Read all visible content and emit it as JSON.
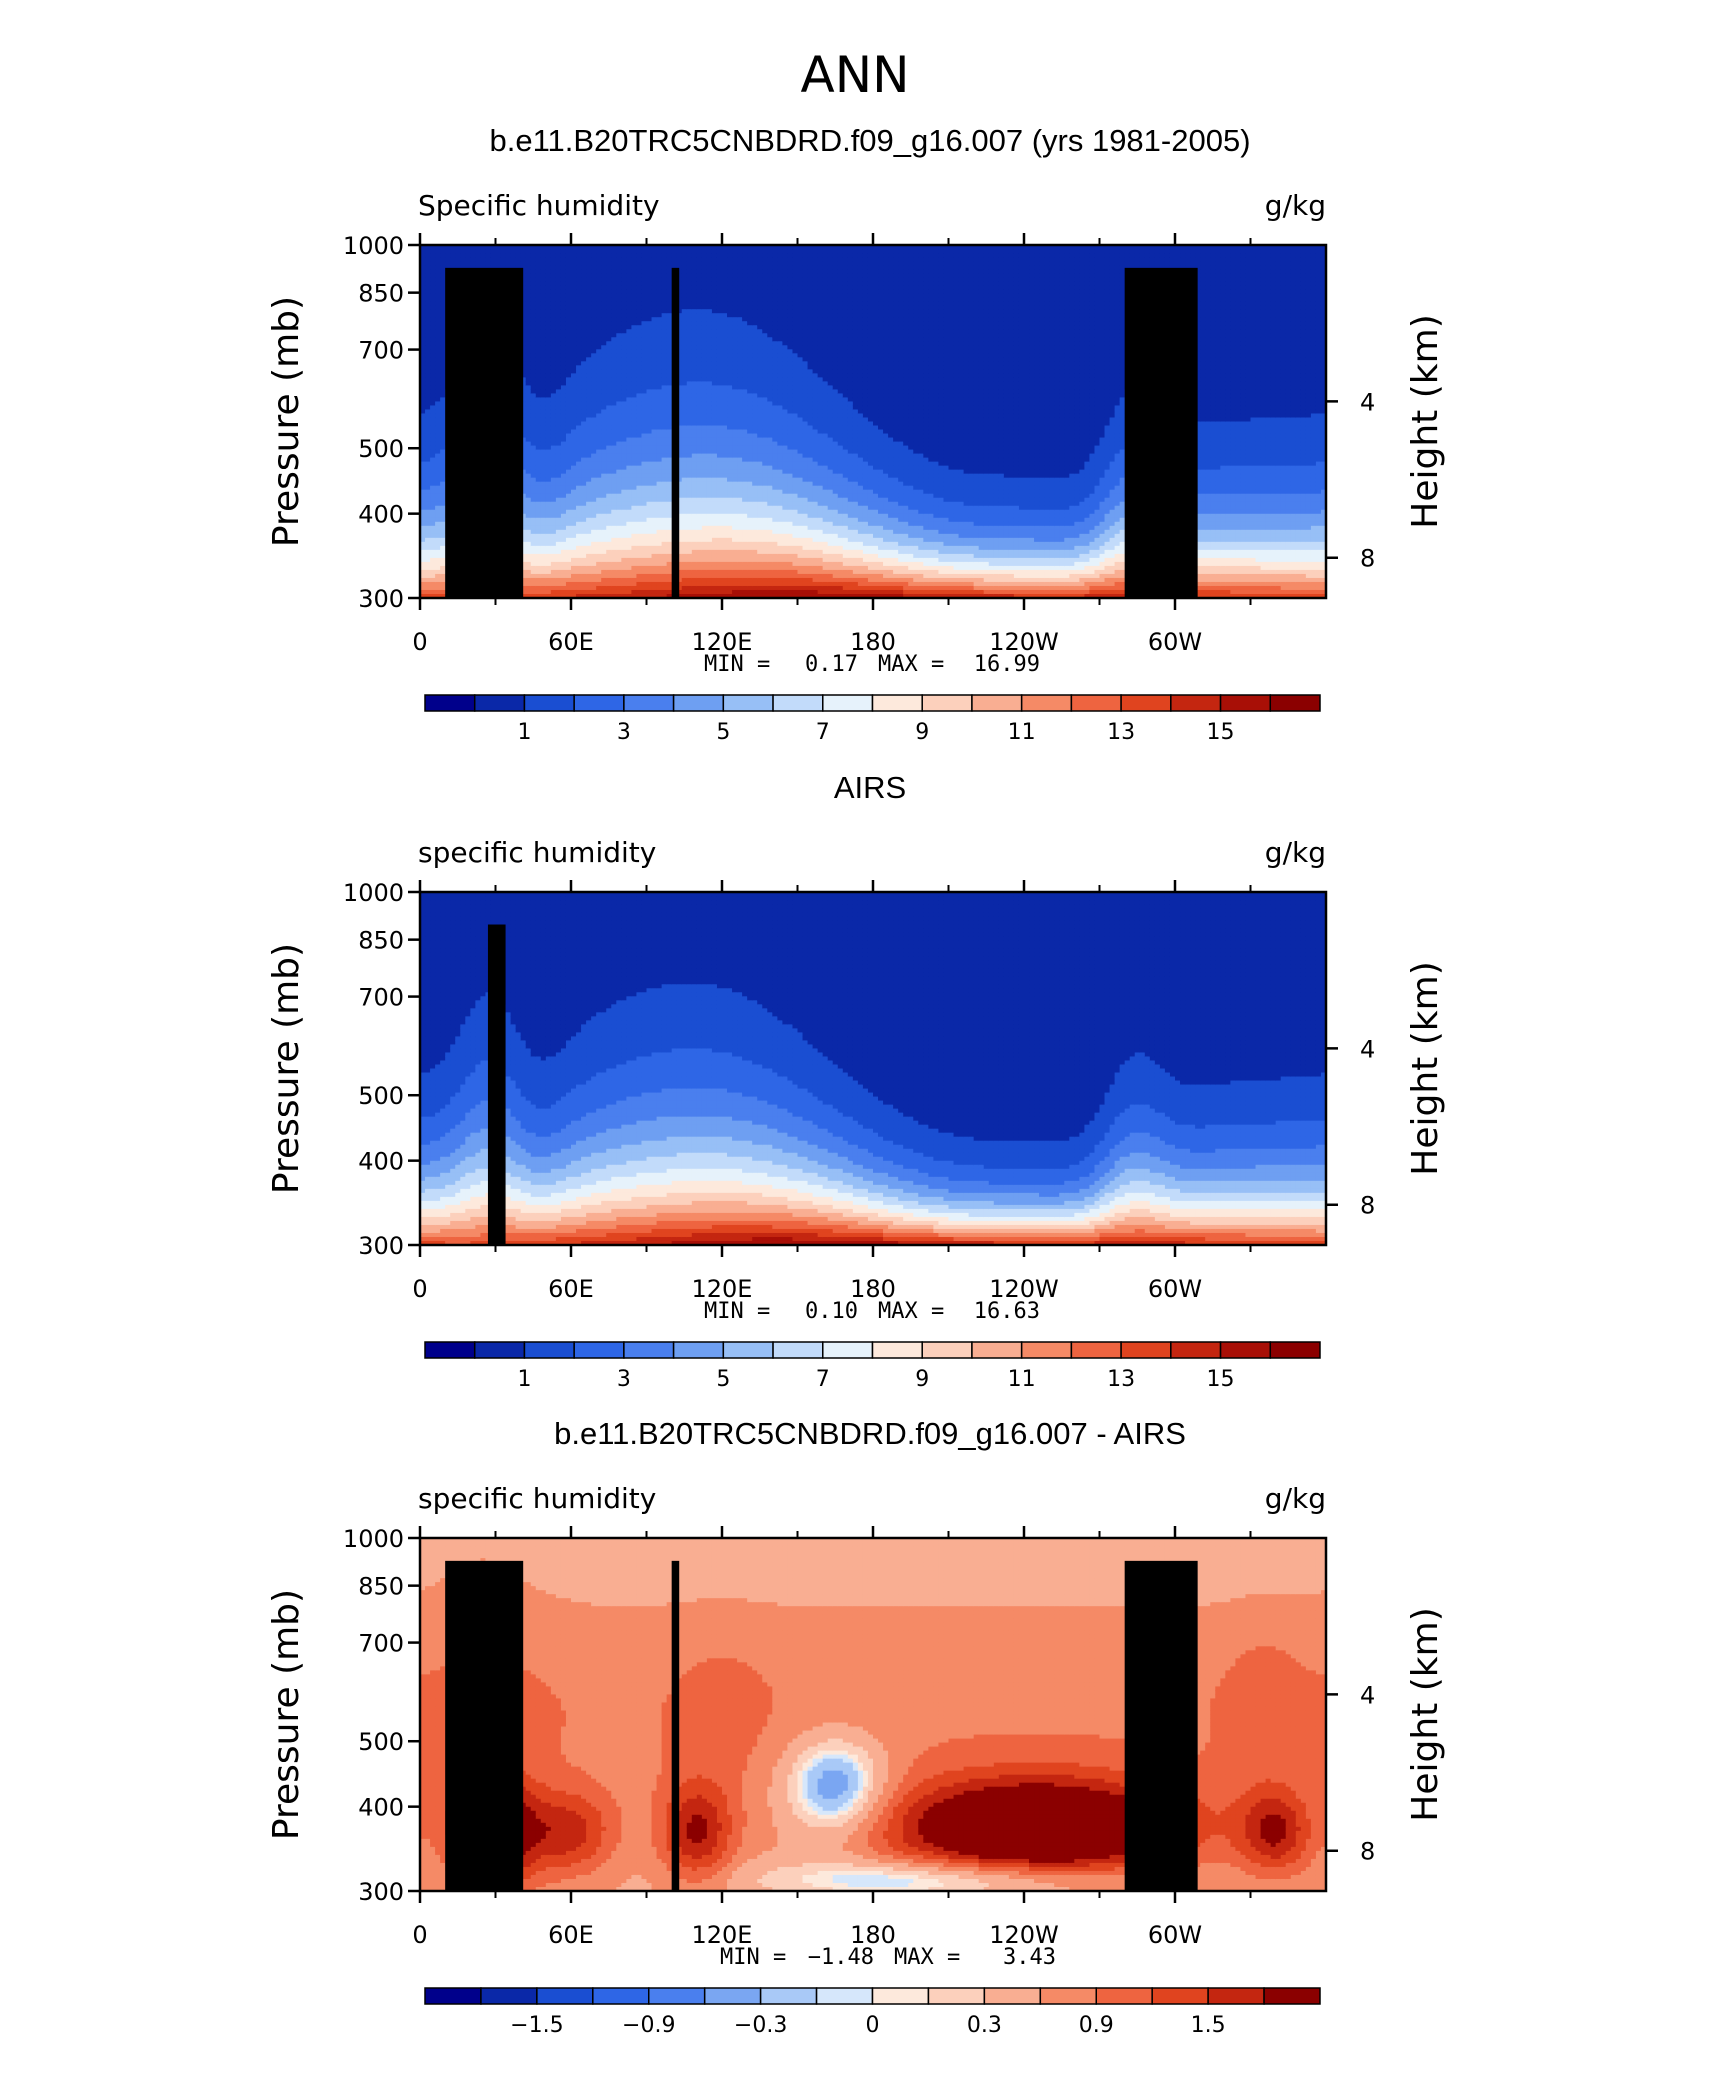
{
  "figure": {
    "suptitle": "ANN"
  },
  "colors": {
    "seq": [
      "#00008b",
      "#0a28a8",
      "#1a4ed2",
      "#2e66e6",
      "#4a7fee",
      "#6e9ff2",
      "#97bff6",
      "#c2dbfa",
      "#e6f2fb",
      "#fde9dc",
      "#fcd0bc",
      "#f9ae92",
      "#f58a66",
      "#ee6440",
      "#e0441f",
      "#c42610",
      "#a80f06",
      "#8b0000"
    ],
    "diff": [
      "#00008b",
      "#0a28a8",
      "#1a4ed2",
      "#2e66e6",
      "#4a7fee",
      "#7aa6f2",
      "#a9c9f7",
      "#d6e7fb",
      "#fde9dc",
      "#fcd0bc",
      "#f9ae92",
      "#f58a66",
      "#ee6440",
      "#e0441f",
      "#c42610",
      "#8b0000"
    ]
  },
  "chart_data": [
    {
      "type": "heatmap",
      "title": "b.e11.B20TRC5CNBDRD.f09_g16.007 (yrs 1981-2005)",
      "left_label": "Specific humidity",
      "right_label": "g/kg",
      "ylabel": "Pressure (mb)",
      "ylabel_right": "Height (km)",
      "x_ticks": [
        "0",
        "60E",
        "120E",
        "180",
        "120W",
        "60W"
      ],
      "x_tick_values": [
        0,
        60,
        120,
        180,
        240,
        300
      ],
      "xlim": [
        0,
        360
      ],
      "y_ticks": [
        "300",
        "400",
        "500",
        "700",
        "850",
        "1000"
      ],
      "y_tick_values": [
        300,
        400,
        500,
        700,
        850,
        1000
      ],
      "ylim": [
        1000,
        300
      ],
      "right_ticks": [
        "8",
        "4"
      ],
      "right_tick_values": [
        8,
        4
      ],
      "min_label": "MIN =",
      "min_value": "0.17",
      "max_label": "MAX =",
      "max_value": "16.99",
      "colorbar_labels": [
        "1",
        "3",
        "5",
        "7",
        "9",
        "11",
        "13",
        "15"
      ],
      "colorbar_label_levels": [
        1,
        3,
        5,
        7,
        9,
        11,
        13,
        15
      ],
      "levels": [
        0,
        1,
        2,
        3,
        4,
        5,
        6,
        7,
        8,
        9,
        10,
        11,
        12,
        13,
        14,
        15,
        16
      ],
      "palette": "seq"
    },
    {
      "type": "heatmap",
      "title": "AIRS",
      "left_label": "specific humidity",
      "right_label": "g/kg",
      "ylabel": "Pressure (mb)",
      "ylabel_right": "Height (km)",
      "x_ticks": [
        "0",
        "60E",
        "120E",
        "180",
        "120W",
        "60W"
      ],
      "x_tick_values": [
        0,
        60,
        120,
        180,
        240,
        300
      ],
      "xlim": [
        0,
        360
      ],
      "y_ticks": [
        "300",
        "400",
        "500",
        "700",
        "850",
        "1000"
      ],
      "y_tick_values": [
        300,
        400,
        500,
        700,
        850,
        1000
      ],
      "ylim": [
        1000,
        300
      ],
      "right_ticks": [
        "8",
        "4"
      ],
      "right_tick_values": [
        8,
        4
      ],
      "min_label": "MIN =",
      "min_value": "0.10",
      "max_label": "MAX =",
      "max_value": "16.63",
      "colorbar_labels": [
        "1",
        "3",
        "5",
        "7",
        "9",
        "11",
        "13",
        "15"
      ],
      "colorbar_label_levels": [
        1,
        3,
        5,
        7,
        9,
        11,
        13,
        15
      ],
      "levels": [
        0,
        1,
        2,
        3,
        4,
        5,
        6,
        7,
        8,
        9,
        10,
        11,
        12,
        13,
        14,
        15,
        16
      ],
      "palette": "seq"
    },
    {
      "type": "heatmap",
      "title": "b.e11.B20TRC5CNBDRD.f09_g16.007 - AIRS",
      "left_label": "specific humidity",
      "right_label": "g/kg",
      "ylabel": "Pressure (mb)",
      "ylabel_right": "Height (km)",
      "x_ticks": [
        "0",
        "60E",
        "120E",
        "180",
        "120W",
        "60W"
      ],
      "x_tick_values": [
        0,
        60,
        120,
        180,
        240,
        300
      ],
      "xlim": [
        0,
        360
      ],
      "y_ticks": [
        "300",
        "400",
        "500",
        "700",
        "850",
        "1000"
      ],
      "y_tick_values": [
        300,
        400,
        500,
        700,
        850,
        1000
      ],
      "ylim": [
        1000,
        300
      ],
      "right_ticks": [
        "8",
        "4"
      ],
      "right_tick_values": [
        8,
        4
      ],
      "min_label": "MIN =",
      "min_value": "−1.48",
      "max_label": "MAX =",
      "max_value": "3.43",
      "colorbar_labels": [
        "−1.5",
        "−0.9",
        "−0.3",
        "0",
        "0.3",
        "0.9",
        "1.5"
      ],
      "colorbar_label_levels": [
        -1.5,
        -0.9,
        -0.3,
        0,
        0.3,
        0.9,
        1.5
      ],
      "levels": [
        -1.8,
        -1.5,
        -1.2,
        -0.9,
        -0.6,
        -0.3,
        -0.1,
        0,
        0.1,
        0.3,
        0.6,
        0.9,
        1.2,
        1.5,
        1.8
      ],
      "palette": "diff"
    }
  ]
}
